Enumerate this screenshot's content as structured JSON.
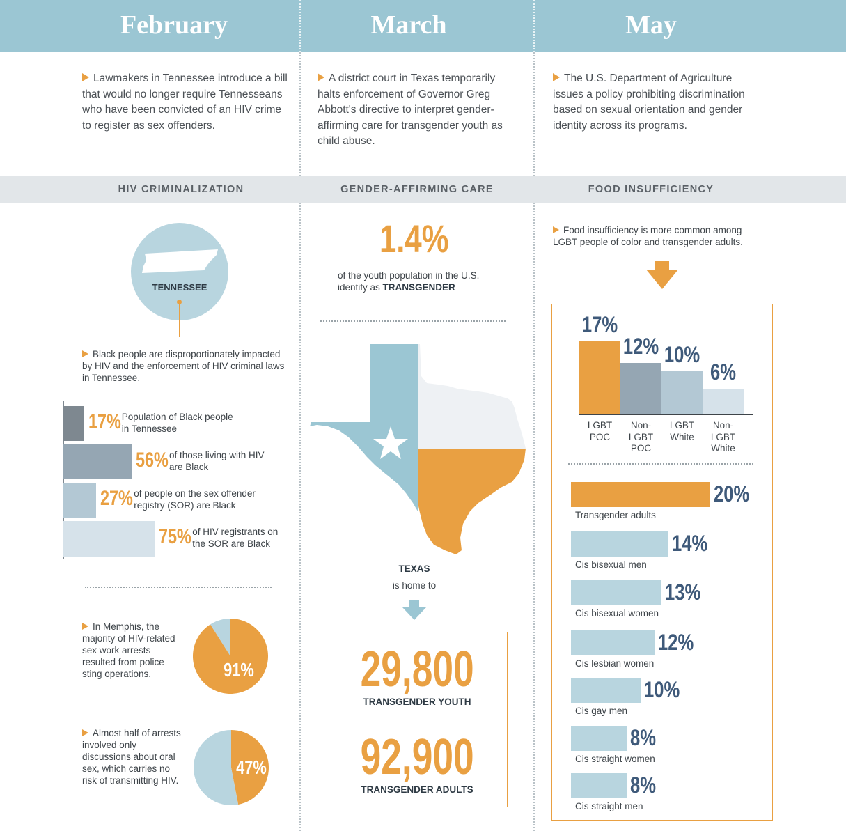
{
  "header": {
    "months": [
      "February",
      "March",
      "May"
    ]
  },
  "intro": {
    "february": "Lawmakers in Tennessee introduce a bill that would no longer require Tennesseans who have been convicted of an HIV crime to register as sex offenders.",
    "march": "A district court in Texas temporarily halts enforcement of Governor Greg Abbott's directive to interpret gender-affirming care for transgender youth as child abuse.",
    "may": "The U.S. Department of Agriculture issues a policy prohibiting discrimination based on sexual orientation and gender identity across its programs."
  },
  "sections": [
    "HIV CRIMINALIZATION",
    "GENDER-AFFIRMING CARE",
    "FOOD INSUFFICIENCY"
  ],
  "hiv": {
    "state_label": "TENNESSEE",
    "statement": "Black people are disproportionately impacted by HIV and the enforcement of HIV criminal laws in Tennessee.",
    "memphis_text": "In Memphis, the majority of HIV-related sex work arrests resulted from police sting operations.",
    "oral_text": "Almost half of arrests involved only discussions about oral sex, which carries no risk of transmitting HIV."
  },
  "gac": {
    "big_pct": "1.4%",
    "desc_line1": "of the youth population in the U.S.",
    "desc_line2_prefix": "identify as ",
    "desc_line2_bold": "TRANSGENDER",
    "texas_label": "TEXAS",
    "home_to": "is home to",
    "youth_number": "29,800",
    "youth_label": "TRANSGENDER YOUTH",
    "adults_number": "92,900",
    "adults_label": "TRANSGENDER ADULTS"
  },
  "food": {
    "statement": "Food insufficiency is more common among LGBT people of color and transgender adults."
  },
  "chart_data": [
    {
      "type": "bar",
      "orientation": "horizontal",
      "bars": [
        {
          "value": 17,
          "label_pct": "17%",
          "text1": "Population of Black people",
          "text2": "in Tennessee",
          "color": "#7e8890"
        },
        {
          "value": 56,
          "label_pct": "56%",
          "text1": "of those living with HIV",
          "text2": "are Black",
          "color": "#95a6b3"
        },
        {
          "value": 27,
          "label_pct": "27%",
          "text1": "of people on the sex offender",
          "text2": "registry (SOR) are Black",
          "color": "#b3c8d4"
        },
        {
          "value": 75,
          "label_pct": "75%",
          "text1": "of HIV registrants on",
          "text2": "the SOR are Black",
          "color": "#d6e2ea"
        }
      ]
    },
    {
      "type": "pie",
      "slices": [
        {
          "label": "91%",
          "value": 91,
          "color": "#e9a042"
        },
        {
          "label": "",
          "value": 9,
          "color": "#b8d5df"
        }
      ]
    },
    {
      "type": "pie",
      "slices": [
        {
          "label": "47%",
          "value": 47,
          "color": "#e9a042"
        },
        {
          "label": "",
          "value": 53,
          "color": "#b8d5df"
        }
      ]
    },
    {
      "type": "bar",
      "orientation": "vertical",
      "categories": [
        [
          "LGBT",
          "POC"
        ],
        [
          "Non-",
          "LGBT",
          "POC"
        ],
        [
          "LGBT",
          "White"
        ],
        [
          "Non-",
          "LGBT",
          "White"
        ]
      ],
      "values": [
        17,
        12,
        10,
        6
      ],
      "labels": [
        "17%",
        "12%",
        "10%",
        "6%"
      ],
      "colors": [
        "#e9a042",
        "#95a6b3",
        "#b3c8d4",
        "#d6e2ea"
      ]
    },
    {
      "type": "bar",
      "orientation": "horizontal",
      "categories": [
        "Transgender adults",
        "Cis bisexual men",
        "Cis bisexual women",
        "Cis lesbian women",
        "Cis gay men",
        "Cis straight women",
        "Cis straight men"
      ],
      "values": [
        20,
        14,
        13,
        12,
        10,
        8,
        8
      ],
      "labels": [
        "20%",
        "14%",
        "13%",
        "12%",
        "10%",
        "8%",
        "8%"
      ],
      "colors": [
        "#e9a042",
        "#b8d5df",
        "#b8d5df",
        "#b8d5df",
        "#b8d5df",
        "#b8d5df",
        "#b8d5df"
      ]
    }
  ]
}
